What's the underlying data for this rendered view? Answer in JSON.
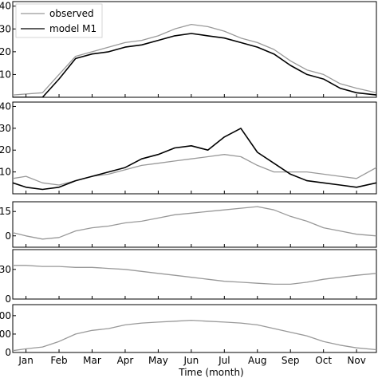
{
  "chart_data": {
    "type": "line",
    "xlabel": "Time (month)",
    "x_tick_labels": [
      "Jan",
      "Feb",
      "Mar",
      "Apr",
      "May",
      "Jun",
      "Jul",
      "Aug",
      "Sep",
      "Oct",
      "Nov"
    ],
    "x_range_months": [
      0.6,
      11.6
    ],
    "colors": {
      "observed": "#999999",
      "model": "#000000"
    },
    "panels": [
      {
        "id": "p1",
        "ylim": [
          0,
          42
        ],
        "yticks": [
          {
            "v": 10,
            "label": "10"
          },
          {
            "v": 20,
            "label": "20"
          },
          {
            "v": 30,
            "label": "30"
          },
          {
            "v": 40,
            "label": "40"
          }
        ],
        "legend": {
          "placement": "top-left",
          "entries": [
            "observed",
            "model M1"
          ]
        },
        "series": [
          {
            "name": "observed",
            "color": "#999999",
            "x": [
              0.6,
              1.5,
              2.0,
              2.5,
              3.0,
              3.5,
              4.0,
              4.5,
              5.0,
              5.5,
              6.0,
              6.5,
              7.0,
              7.5,
              8.0,
              8.5,
              9.0,
              9.5,
              10.0,
              10.5,
              11.0,
              11.6
            ],
            "values": [
              1,
              2,
              10,
              18,
              20,
              22,
              24,
              25,
              27,
              30,
              32,
              31,
              29,
              26,
              24,
              21,
              16,
              12,
              10,
              6,
              4,
              2
            ]
          },
          {
            "name": "model M1",
            "color": "#000000",
            "x": [
              0.6,
              1.5,
              2.0,
              2.5,
              3.0,
              3.5,
              4.0,
              4.5,
              5.0,
              5.5,
              6.0,
              6.5,
              7.0,
              7.5,
              8.0,
              8.5,
              9.0,
              9.5,
              10.0,
              10.5,
              11.0,
              11.6
            ],
            "values": [
              0,
              0,
              8,
              17,
              19,
              20,
              22,
              23,
              25,
              27,
              28,
              27,
              26,
              24,
              22,
              19,
              14,
              10,
              8,
              4,
              2,
              1
            ]
          }
        ]
      },
      {
        "id": "p2",
        "ylim": [
          0,
          42
        ],
        "yticks": [
          {
            "v": 10,
            "label": "10"
          },
          {
            "v": 20,
            "label": "20"
          },
          {
            "v": 30,
            "label": "30"
          },
          {
            "v": 40,
            "label": "40"
          }
        ],
        "series": [
          {
            "name": "observed",
            "color": "#999999",
            "x": [
              0.6,
              1.0,
              1.5,
              2.0,
              2.5,
              3.0,
              3.5,
              4.0,
              4.5,
              5.0,
              5.5,
              6.0,
              6.5,
              7.0,
              7.5,
              8.0,
              8.5,
              9.0,
              9.5,
              10.0,
              10.5,
              11.0,
              11.6
            ],
            "values": [
              7,
              8,
              5,
              4,
              6,
              8,
              9,
              11,
              13,
              14,
              15,
              16,
              17,
              18,
              17,
              13,
              10,
              10,
              10,
              9,
              8,
              7,
              12
            ]
          },
          {
            "name": "model M1",
            "color": "#000000",
            "x": [
              0.6,
              1.0,
              1.5,
              2.0,
              2.5,
              3.0,
              3.5,
              4.0,
              4.5,
              5.0,
              5.5,
              6.0,
              6.5,
              7.0,
              7.5,
              8.0,
              8.5,
              9.0,
              9.5,
              10.0,
              10.5,
              11.0,
              11.6
            ],
            "values": [
              5,
              3,
              2,
              3,
              6,
              8,
              10,
              12,
              16,
              18,
              21,
              22,
              20,
              26,
              30,
              19,
              14,
              9,
              6,
              5,
              4,
              3,
              5
            ]
          }
        ]
      },
      {
        "id": "p3",
        "ylim": [
          -7,
          21
        ],
        "yticks": [
          {
            "v": 0,
            "label": "0"
          },
          {
            "v": 15,
            "label": "15"
          }
        ],
        "series": [
          {
            "name": "",
            "color": "#999999",
            "x": [
              0.6,
              1.0,
              1.5,
              2.0,
              2.5,
              3.0,
              3.5,
              4.0,
              4.5,
              5.0,
              5.5,
              6.0,
              6.5,
              7.0,
              7.5,
              8.0,
              8.5,
              9.0,
              9.5,
              10.0,
              10.5,
              11.0,
              11.6
            ],
            "values": [
              2,
              0,
              -2,
              -1,
              3,
              5,
              6,
              8,
              9,
              11,
              13,
              14,
              15,
              16,
              17,
              18,
              16,
              12,
              9,
              5,
              3,
              1,
              0
            ]
          }
        ]
      },
      {
        "id": "p4",
        "ylim": [
          0,
          50
        ],
        "yticks": [
          {
            "v": 0,
            "label": "0"
          },
          {
            "v": 30,
            "label": "30"
          }
        ],
        "series": [
          {
            "name": "",
            "color": "#999999",
            "x": [
              0.6,
              1.0,
              1.5,
              2.0,
              2.5,
              3.0,
              3.5,
              4.0,
              4.5,
              5.0,
              5.5,
              6.0,
              6.5,
              7.0,
              7.5,
              8.0,
              8.5,
              9.0,
              9.5,
              10.0,
              10.5,
              11.0,
              11.6
            ],
            "values": [
              34,
              34,
              33,
              33,
              32,
              32,
              31,
              30,
              28,
              26,
              24,
              22,
              20,
              18,
              17,
              16,
              15,
              15,
              17,
              20,
              22,
              24,
              26
            ]
          }
        ]
      },
      {
        "id": "p5",
        "ylim": [
          0,
          520
        ],
        "yticks": [
          {
            "v": 0,
            "label": "0"
          },
          {
            "v": 200,
            "label": "200"
          },
          {
            "v": 400,
            "label": "400"
          }
        ],
        "series": [
          {
            "name": "",
            "color": "#999999",
            "x": [
              0.6,
              1.0,
              1.5,
              2.0,
              2.5,
              3.0,
              3.5,
              4.0,
              4.5,
              5.0,
              5.5,
              6.0,
              6.5,
              7.0,
              7.5,
              8.0,
              8.5,
              9.0,
              9.5,
              10.0,
              10.5,
              11.0,
              11.6
            ],
            "values": [
              20,
              40,
              60,
              120,
              200,
              240,
              260,
              300,
              320,
              330,
              340,
              350,
              340,
              330,
              320,
              300,
              260,
              220,
              180,
              120,
              80,
              50,
              30
            ]
          }
        ]
      }
    ]
  }
}
